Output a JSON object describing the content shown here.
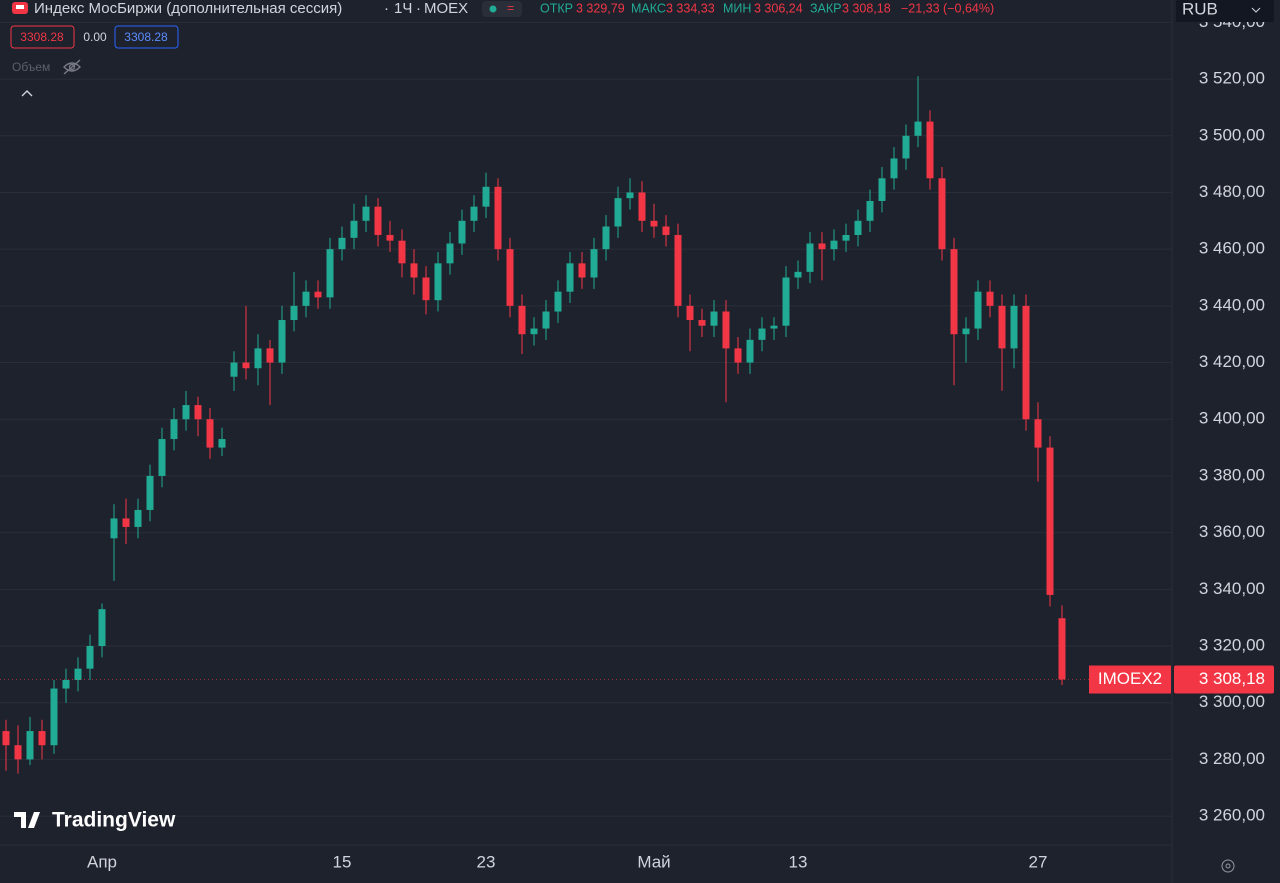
{
  "header": {
    "title": "Индекс МосБиржи (дополнительная сессия)",
    "interval": "1Ч",
    "exchange": "MOEX",
    "open_label": "ОТКР",
    "open": "3 329,79",
    "high_label": "МАКС",
    "high": "3 334,33",
    "low_label": "МИН",
    "low": "3 306,24",
    "close_label": "ЗАКР",
    "close": "3 308,18",
    "change": "−21,33 (−0,64%)",
    "sell_price": "3308.28",
    "spread": "0.00",
    "buy_price": "3308.28",
    "volume_label": "Объем",
    "currency": "RUB",
    "logo": "TradingView"
  },
  "chart_data": {
    "type": "candlestick",
    "up_color": "#22ab94",
    "down_color": "#f23645",
    "grid": true,
    "ylim": [
      3249.8,
      3547.9
    ],
    "yticks": [
      {
        "value": 3260,
        "label": "3 260,00"
      },
      {
        "value": 3280,
        "label": "3 280,00"
      },
      {
        "value": 3300,
        "label": "3 300,00"
      },
      {
        "value": 3320,
        "label": "3 320,00"
      },
      {
        "value": 3340,
        "label": "3 340,00"
      },
      {
        "value": 3360,
        "label": "3 360,00"
      },
      {
        "value": 3380,
        "label": "3 380,00"
      },
      {
        "value": 3400,
        "label": "3 400,00"
      },
      {
        "value": 3420,
        "label": "3 420,00"
      },
      {
        "value": 3440,
        "label": "3 440,00"
      },
      {
        "value": 3460,
        "label": "3 460,00"
      },
      {
        "value": 3480,
        "label": "3 480,00"
      },
      {
        "value": 3500,
        "label": "3 500,00"
      },
      {
        "value": 3520,
        "label": "3 520,00"
      },
      {
        "value": 3540,
        "label": "3 540,00"
      }
    ],
    "categories": [
      null,
      null,
      null,
      null,
      null,
      null,
      null,
      null,
      "Апр",
      null,
      null,
      null,
      null,
      null,
      null,
      null,
      null,
      null,
      null,
      null,
      null,
      null,
      null,
      null,
      null,
      null,
      null,
      null,
      "15",
      null,
      null,
      null,
      null,
      null,
      null,
      null,
      null,
      null,
      null,
      null,
      "23",
      null,
      null,
      null,
      null,
      null,
      null,
      null,
      null,
      null,
      null,
      null,
      null,
      null,
      "Май",
      null,
      null,
      null,
      null,
      null,
      null,
      null,
      null,
      null,
      null,
      null,
      "13",
      null,
      null,
      null,
      null,
      null,
      null,
      null,
      null,
      null,
      null,
      null,
      null,
      null,
      null,
      null,
      null,
      null,
      null,
      null,
      "27",
      null,
      null
    ],
    "open": [
      3290,
      3285,
      3280,
      3290,
      3285,
      3305,
      3308,
      3312,
      3320,
      3358,
      3365,
      3362,
      3368,
      3380,
      3393,
      3400,
      3405,
      3400,
      3390,
      3415,
      3420,
      3418,
      3425,
      3420,
      3435,
      3440,
      3445,
      3443,
      3460,
      3464,
      3470,
      3475,
      3465,
      3463,
      3455,
      3450,
      3442,
      3455,
      3462,
      3470,
      3475,
      3482,
      3460,
      3440,
      3430,
      3432,
      3438,
      3445,
      3455,
      3450,
      3460,
      3468,
      3478,
      3480,
      3470,
      3468,
      3465,
      3440,
      3435,
      3433,
      3438,
      3425,
      3420,
      3428,
      3432,
      3433,
      3450,
      3452,
      3462,
      3460,
      3463,
      3465,
      3470,
      3477,
      3485,
      3492,
      3500,
      3505,
      3485,
      3460,
      3430,
      3432,
      3445,
      3440,
      3425,
      3440,
      3400,
      3390,
      3329.79
    ],
    "high": [
      3294,
      3292,
      3295,
      3294,
      3308,
      3312,
      3316,
      3324,
      3335,
      3370,
      3372,
      3372,
      3384,
      3397,
      3404,
      3410,
      3408,
      3404,
      3397,
      3424,
      3440,
      3430,
      3428,
      3440,
      3452,
      3449,
      3449,
      3464,
      3468,
      3476,
      3479,
      3478,
      3470,
      3467,
      3460,
      3454,
      3459,
      3466,
      3474,
      3479,
      3487,
      3485,
      3464,
      3444,
      3436,
      3442,
      3449,
      3459,
      3459,
      3464,
      3472,
      3482,
      3485,
      3484,
      3476,
      3472,
      3469,
      3444,
      3439,
      3442,
      3442,
      3429,
      3432,
      3436,
      3436,
      3454,
      3456,
      3466,
      3466,
      3467,
      3469,
      3474,
      3481,
      3489,
      3496,
      3504,
      3521,
      3509,
      3489,
      3464,
      3436,
      3449,
      3449,
      3444,
      3444,
      3444,
      3406,
      3394,
      3334.33
    ],
    "low": [
      3276,
      3275,
      3278,
      3280,
      3282,
      3300,
      3304,
      3308,
      3316,
      3343,
      3356,
      3358,
      3364,
      3376,
      3389,
      3396,
      3394,
      3386,
      3387,
      3410,
      3414,
      3412,
      3405,
      3416,
      3431,
      3436,
      3439,
      3439,
      3456,
      3460,
      3466,
      3461,
      3459,
      3450,
      3444,
      3437,
      3438,
      3451,
      3458,
      3466,
      3471,
      3456,
      3436,
      3423,
      3426,
      3428,
      3434,
      3441,
      3446,
      3446,
      3456,
      3464,
      3474,
      3466,
      3464,
      3461,
      3436,
      3424,
      3429,
      3429,
      3406,
      3416,
      3416,
      3424,
      3428,
      3429,
      3446,
      3448,
      3449,
      3456,
      3459,
      3461,
      3466,
      3473,
      3481,
      3488,
      3496,
      3481,
      3456,
      3412,
      3420,
      3428,
      3436,
      3410,
      3418,
      3396,
      3378,
      3334,
      3306.24
    ],
    "close": [
      3285,
      3280,
      3290,
      3285,
      3305,
      3308,
      3312,
      3320,
      3333,
      3365,
      3362,
      3368,
      3380,
      3393,
      3400,
      3405,
      3400,
      3390,
      3393,
      3420,
      3418,
      3425,
      3420,
      3435,
      3440,
      3445,
      3443,
      3460,
      3464,
      3470,
      3475,
      3465,
      3463,
      3455,
      3450,
      3442,
      3455,
      3462,
      3470,
      3475,
      3482,
      3460,
      3440,
      3430,
      3432,
      3438,
      3445,
      3455,
      3450,
      3460,
      3468,
      3478,
      3480,
      3470,
      3468,
      3465,
      3440,
      3435,
      3433,
      3438,
      3425,
      3420,
      3428,
      3432,
      3433,
      3450,
      3452,
      3462,
      3460,
      3463,
      3465,
      3470,
      3477,
      3485,
      3492,
      3500,
      3505,
      3485,
      3460,
      3430,
      3432,
      3445,
      3440,
      3425,
      3440,
      3400,
      3390,
      3338,
      3308.18
    ],
    "symbol": "IMOEX2",
    "last_price": {
      "value": 3308.18,
      "label": "3 308,18"
    }
  }
}
